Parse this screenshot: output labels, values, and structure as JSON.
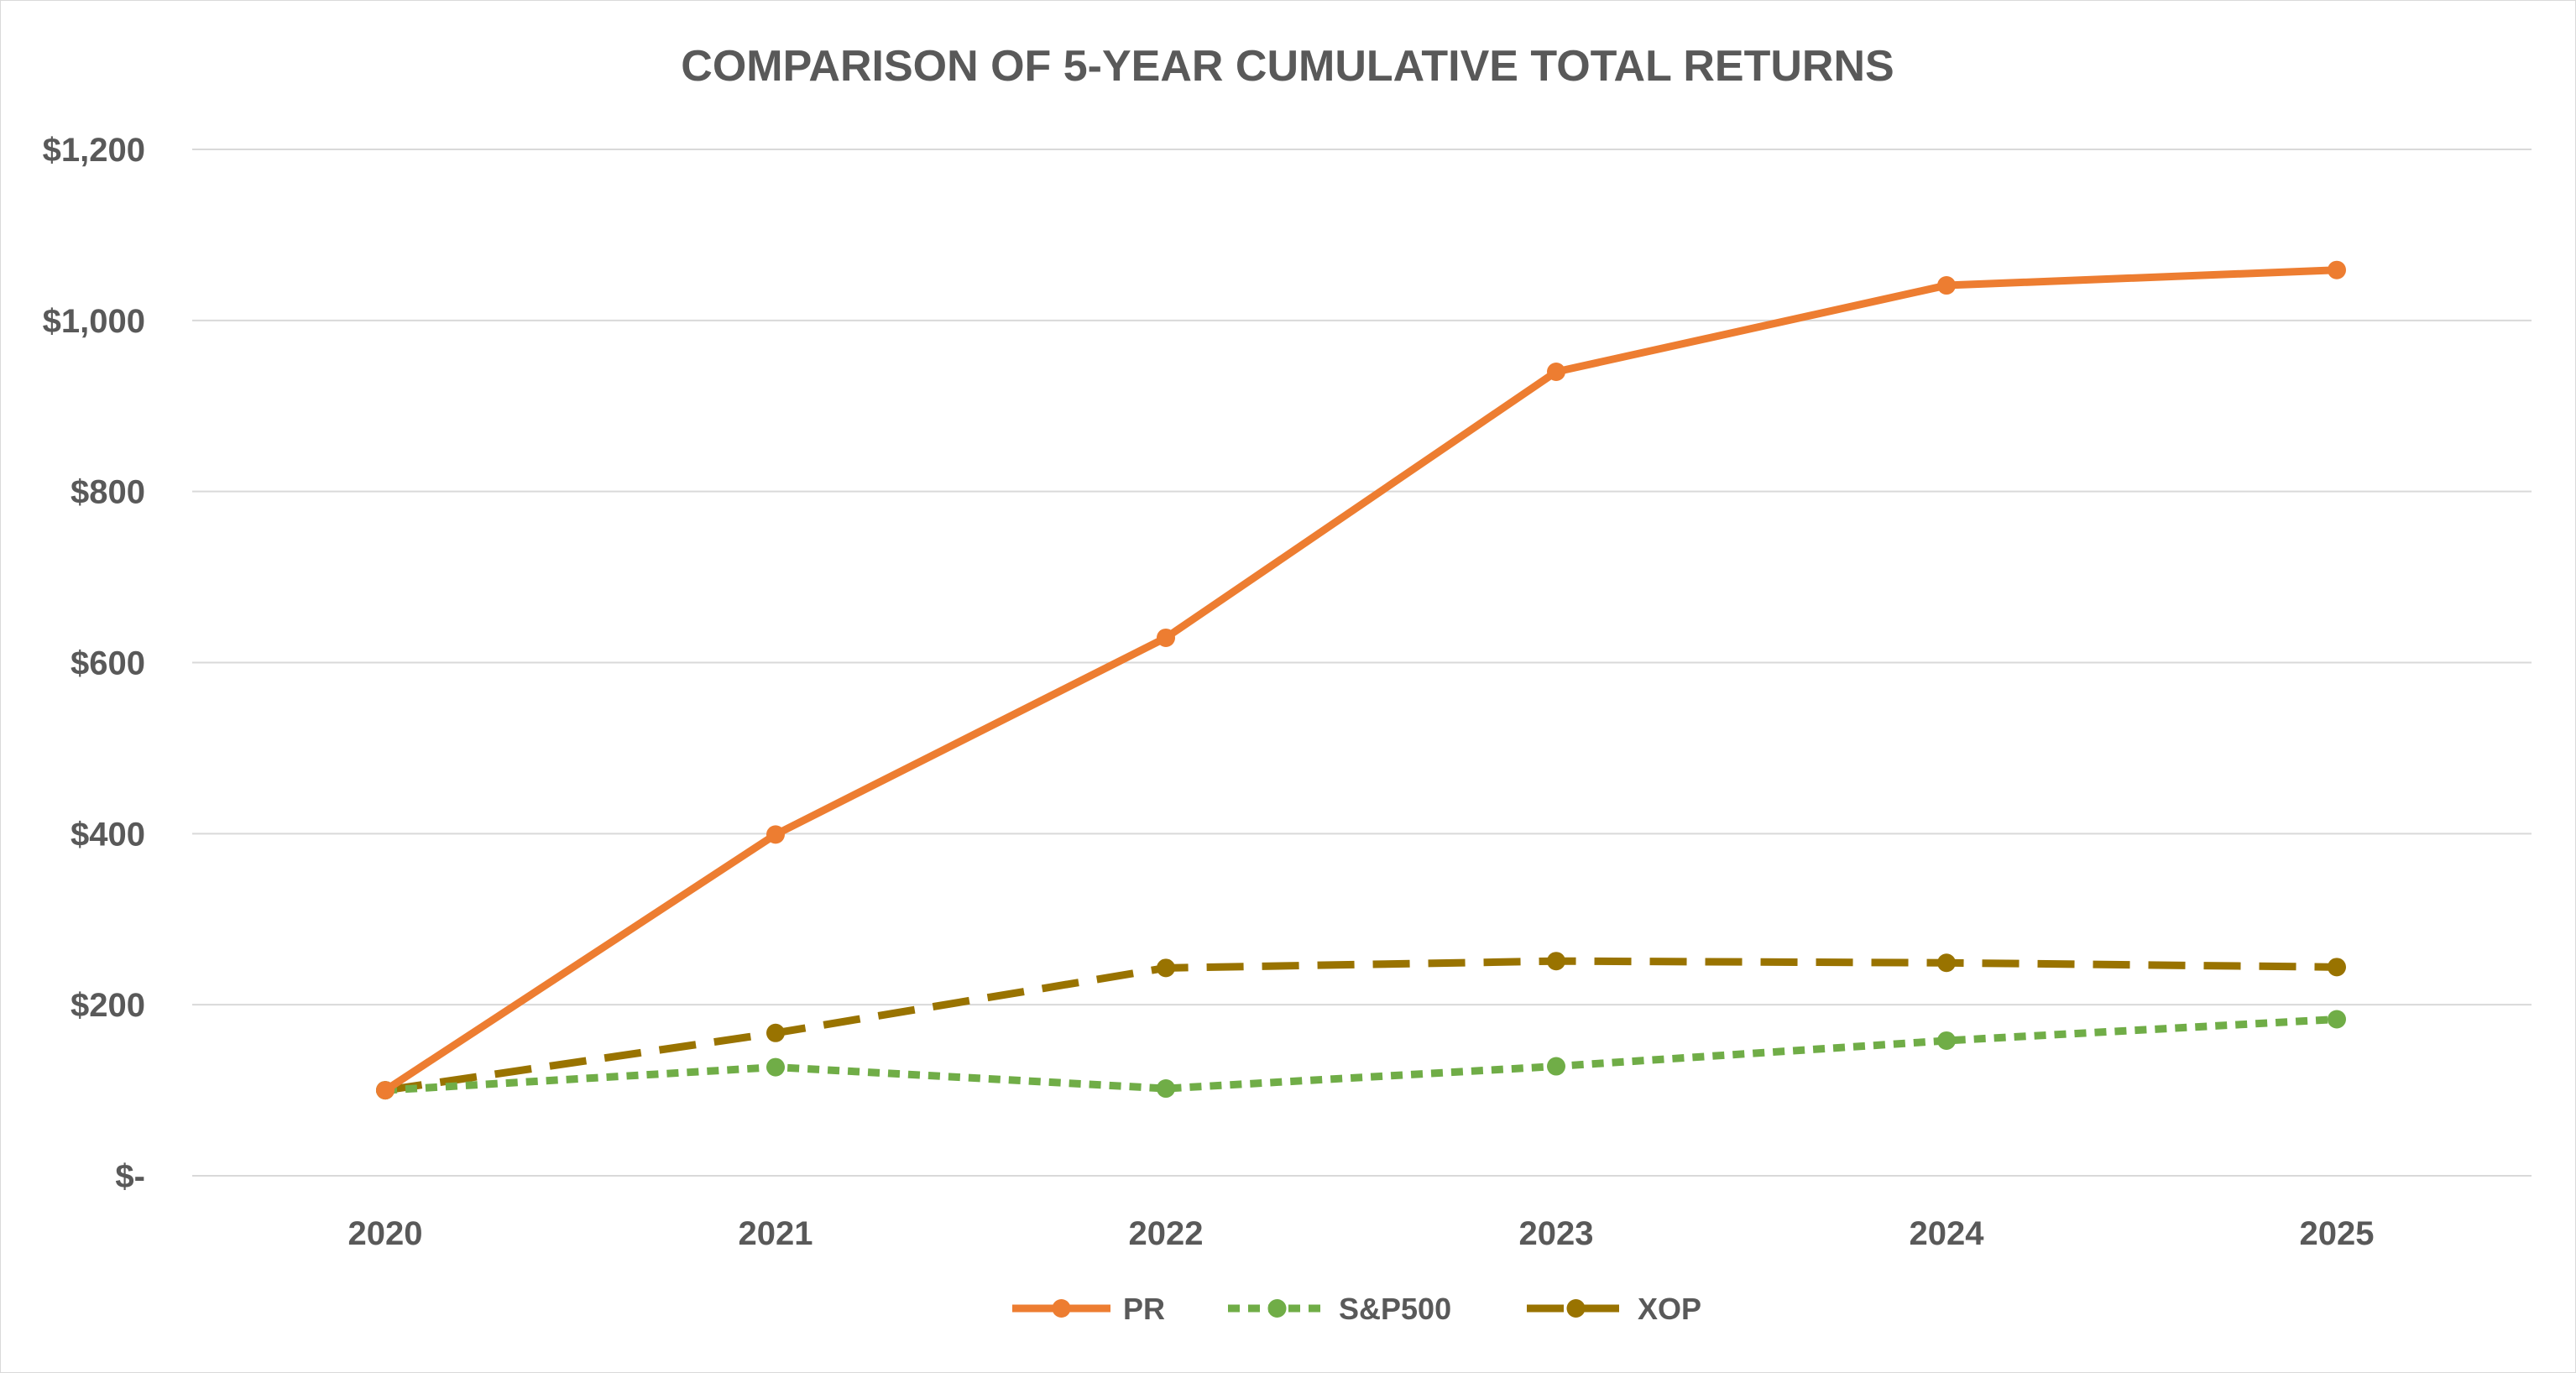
{
  "chart_data": {
    "type": "line",
    "title": "COMPARISON OF 5-YEAR CUMULATIVE TOTAL RETURNS",
    "xlabel": "",
    "ylabel": "",
    "categories": [
      "2020",
      "2021",
      "2022",
      "2023",
      "2024",
      "2025"
    ],
    "ylim": [
      0,
      1200
    ],
    "y_ticks": [
      0,
      200,
      400,
      600,
      800,
      1000,
      1200
    ],
    "y_tick_labels": [
      "$-",
      "$200",
      "$400",
      "$600",
      "$800",
      "$1,000",
      "$1,200"
    ],
    "grid": "horizontal",
    "legend_position": "bottom",
    "series": [
      {
        "name": "PR",
        "values": [
          100,
          399,
          629,
          940,
          1041,
          1059
        ],
        "color": "#ed7d31",
        "line_style": "solid"
      },
      {
        "name": "S&P500",
        "values": [
          100,
          127,
          102,
          128,
          158,
          183
        ],
        "color": "#70ad47",
        "line_style": "dotted"
      },
      {
        "name": "XOP",
        "values": [
          100,
          167,
          243,
          251,
          249,
          244
        ],
        "color": "#997300",
        "line_style": "dashed"
      }
    ]
  }
}
